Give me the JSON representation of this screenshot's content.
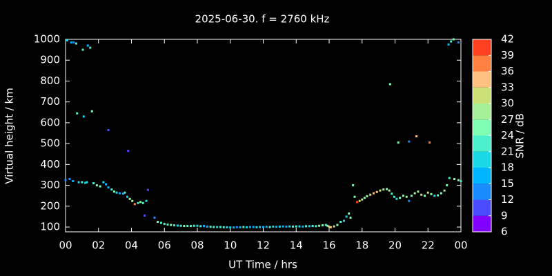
{
  "chart_data": {
    "type": "scatter",
    "title": "2025-06-30. f = 2760 kHz",
    "x_label": "UT Time / hrs",
    "y_label": "Virtual height / km",
    "xlim": [
      0,
      24
    ],
    "ylim": [
      77,
      1000
    ],
    "xticks": [
      {
        "value": 0,
        "label": "00"
      },
      {
        "value": 2,
        "label": "02"
      },
      {
        "value": 4,
        "label": "04"
      },
      {
        "value": 6,
        "label": "06"
      },
      {
        "value": 8,
        "label": "08"
      },
      10,
      12,
      14,
      16,
      18,
      20,
      22,
      {
        "value": 24,
        "label": "00"
      }
    ],
    "yticks": [
      100,
      200,
      300,
      400,
      500,
      600,
      700,
      800,
      900,
      1000
    ],
    "colorbar": {
      "label": "SNR / dB",
      "lim": [
        6,
        42
      ],
      "ticks": [
        6,
        9,
        12,
        15,
        18,
        21,
        24,
        27,
        30,
        33,
        36,
        39,
        42
      ],
      "colors": [
        "#8000ff",
        "#4c4cff",
        "#1a8cff",
        "#00b4ff",
        "#1ad8e6",
        "#4cf0cc",
        "#80ffb4",
        "#a6f098",
        "#cce078",
        "#ffc080",
        "#ff8040",
        "#ff4020"
      ]
    },
    "x": [
      0.1,
      0.35,
      0.5,
      0.65,
      1.05,
      1.35,
      1.5,
      23.25,
      23.4,
      23.55,
      23.85,
      0.7,
      1.1,
      1.6,
      2.6,
      3.8,
      19.7,
      20.2,
      20.85,
      21.3,
      22.1,
      0,
      0.25,
      0.45,
      0.8,
      1,
      1.2,
      1.3,
      1.7,
      1.9,
      2.1,
      2.3,
      2.45,
      2.6,
      2.8,
      2.95,
      3.1,
      3.3,
      3.5,
      3.6,
      3.75,
      3.9,
      4.05,
      4.2,
      4.4,
      4.55,
      4.7,
      4.8,
      4.9,
      5,
      5.4,
      5.6,
      5.8,
      6,
      6.2,
      6.4,
      6.6,
      6.8,
      7,
      7.2,
      7.4,
      7.6,
      7.8,
      8,
      8.2,
      8.4,
      8.6,
      8.8,
      9,
      9.2,
      9.4,
      9.6,
      9.8,
      10,
      10.2,
      10.4,
      10.6,
      10.8,
      11,
      11.2,
      11.4,
      11.6,
      11.8,
      12,
      12.2,
      12.4,
      12.6,
      12.8,
      13,
      13.2,
      13.4,
      13.6,
      13.8,
      14,
      14.2,
      14.4,
      14.6,
      14.8,
      15,
      15.2,
      15.4,
      15.6,
      15.8,
      15.9,
      16,
      16.1,
      16.3,
      16.5,
      16.7,
      16.9,
      17.05,
      17.2,
      17.3,
      17.45,
      17.55,
      17.7,
      17.85,
      18,
      18.15,
      18.3,
      18.5,
      18.7,
      18.9,
      19.1,
      19.3,
      19.5,
      19.65,
      19.8,
      19.95,
      20.1,
      20.3,
      20.5,
      20.7,
      20.85,
      21,
      21.2,
      21.4,
      21.6,
      21.8,
      22,
      22.2,
      22.4,
      22.6,
      22.8,
      23,
      23.15,
      23.3,
      23.6,
      23.85,
      24
    ],
    "values": [
      995,
      985,
      985,
      980,
      950,
      970,
      960,
      975,
      990,
      1000,
      985,
      645,
      630,
      655,
      565,
      465,
      785,
      505,
      510,
      535,
      505,
      325,
      330,
      320,
      315,
      315,
      312,
      315,
      310,
      300,
      295,
      315,
      305,
      290,
      280,
      270,
      265,
      262,
      260,
      265,
      245,
      235,
      225,
      210,
      215,
      220,
      215,
      155,
      225,
      278,
      145,
      125,
      120,
      115,
      112,
      110,
      108,
      107,
      106,
      105,
      105,
      105,
      106,
      106,
      104,
      105,
      102,
      101,
      100,
      100,
      100,
      99,
      99,
      98,
      98,
      99,
      99,
      100,
      99,
      100,
      100,
      99,
      100,
      100,
      101,
      100,
      102,
      101,
      102,
      103,
      102,
      103,
      102,
      103,
      103,
      102,
      104,
      104,
      105,
      104,
      106,
      108,
      110,
      106,
      102,
      99,
      103,
      110,
      125,
      130,
      150,
      165,
      145,
      300,
      245,
      220,
      225,
      232,
      240,
      248,
      255,
      262,
      268,
      275,
      280,
      282,
      275,
      260,
      245,
      235,
      240,
      250,
      245,
      225,
      250,
      262,
      270,
      255,
      250,
      265,
      258,
      250,
      252,
      262,
      275,
      300,
      335,
      330,
      325,
      320
    ],
    "snr": [
      20,
      16,
      14,
      23,
      22,
      17,
      21,
      15,
      22,
      24,
      14,
      22,
      20,
      24,
      11,
      11,
      24,
      24,
      12,
      35,
      36,
      14,
      14,
      16,
      19,
      21,
      20,
      18,
      22,
      26,
      24,
      19,
      15,
      17,
      22,
      24,
      20,
      16,
      17,
      21,
      20,
      25,
      27,
      38,
      22,
      26,
      23,
      10,
      20,
      11,
      12,
      24,
      22,
      21,
      22,
      24,
      21,
      20,
      22,
      24,
      23,
      22,
      21,
      20,
      22,
      17,
      15,
      21,
      22,
      19,
      21,
      22,
      18,
      20,
      16,
      14,
      17,
      21,
      18,
      16,
      15,
      19,
      20,
      15,
      17,
      21,
      18,
      16,
      20,
      17,
      15,
      19,
      22,
      21,
      18,
      17,
      22,
      20,
      23,
      21,
      24,
      25,
      22,
      26,
      30,
      34,
      30,
      26,
      22,
      20,
      18,
      24,
      25,
      24,
      26,
      39,
      31,
      27,
      26,
      29,
      31,
      33,
      35,
      30,
      28,
      26,
      27,
      23,
      21,
      20,
      24,
      26,
      28,
      13,
      25,
      27,
      29,
      31,
      26,
      30,
      24,
      19,
      22,
      25,
      27,
      26,
      22,
      25,
      24,
      23
    ]
  }
}
